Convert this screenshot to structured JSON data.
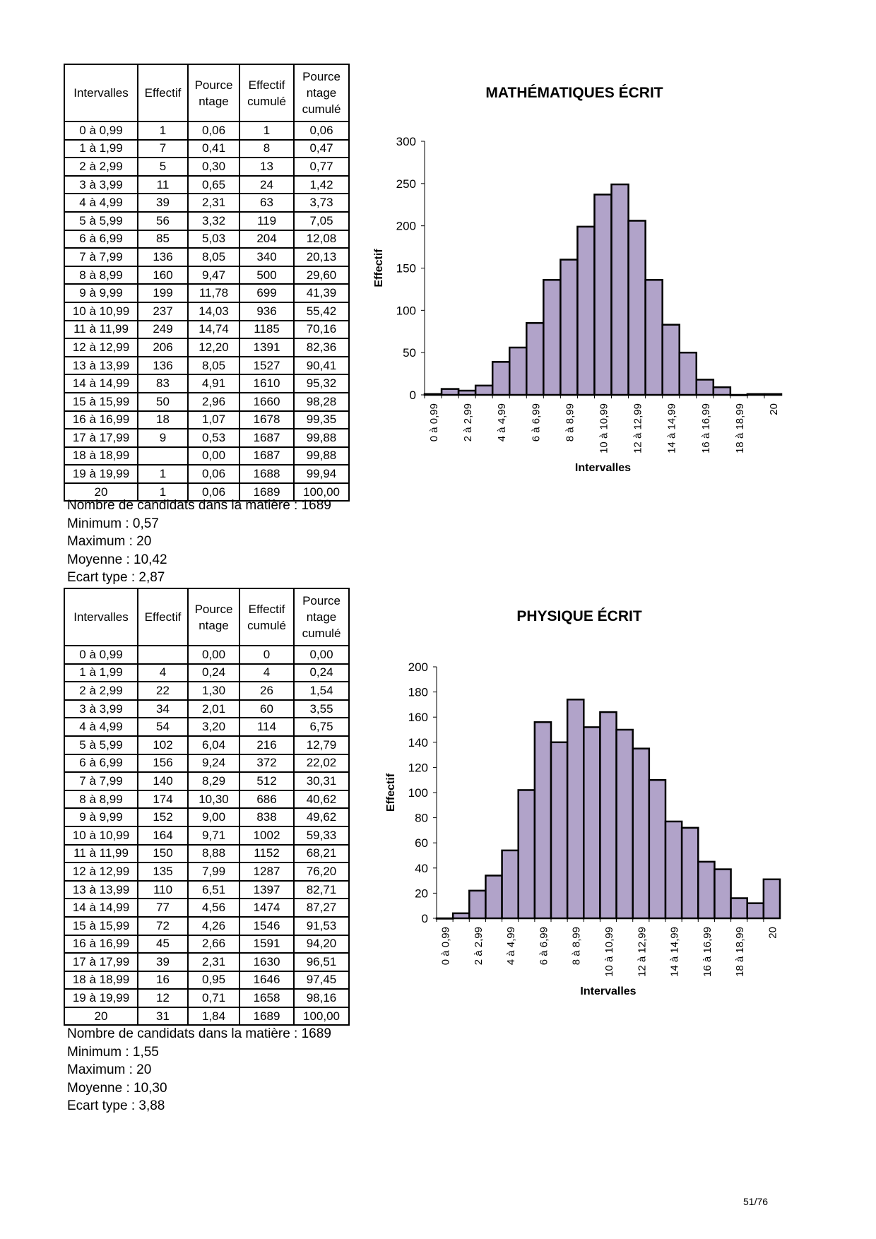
{
  "headers": [
    "Intervalles",
    "Effectif",
    "Pource ntage",
    "Effectif cumulé",
    "Pource ntage cumulé"
  ],
  "sections": [
    {
      "title": "MATHÉMATIQUES ÉCRIT",
      "rows": [
        [
          "0 à 0,99",
          "1",
          "0,06",
          "1",
          "0,06"
        ],
        [
          "1 à 1,99",
          "7",
          "0,41",
          "8",
          "0,47"
        ],
        [
          "2 à 2,99",
          "5",
          "0,30",
          "13",
          "0,77"
        ],
        [
          "3 à 3,99",
          "11",
          "0,65",
          "24",
          "1,42"
        ],
        [
          "4 à 4,99",
          "39",
          "2,31",
          "63",
          "3,73"
        ],
        [
          "5 à 5,99",
          "56",
          "3,32",
          "119",
          "7,05"
        ],
        [
          "6 à 6,99",
          "85",
          "5,03",
          "204",
          "12,08"
        ],
        [
          "7 à 7,99",
          "136",
          "8,05",
          "340",
          "20,13"
        ],
        [
          "8 à 8,99",
          "160",
          "9,47",
          "500",
          "29,60"
        ],
        [
          "9 à 9,99",
          "199",
          "11,78",
          "699",
          "41,39"
        ],
        [
          "10 à 10,99",
          "237",
          "14,03",
          "936",
          "55,42"
        ],
        [
          "11 à 11,99",
          "249",
          "14,74",
          "1185",
          "70,16"
        ],
        [
          "12 à 12,99",
          "206",
          "12,20",
          "1391",
          "82,36"
        ],
        [
          "13 à 13,99",
          "136",
          "8,05",
          "1527",
          "90,41"
        ],
        [
          "14 à 14,99",
          "83",
          "4,91",
          "1610",
          "95,32"
        ],
        [
          "15 à 15,99",
          "50",
          "2,96",
          "1660",
          "98,28"
        ],
        [
          "16 à 16,99",
          "18",
          "1,07",
          "1678",
          "99,35"
        ],
        [
          "17 à 17,99",
          "9",
          "0,53",
          "1687",
          "99,88"
        ],
        [
          "18 à 18,99",
          "",
          "0,00",
          "1687",
          "99,88"
        ],
        [
          "19 à 19,99",
          "1",
          "0,06",
          "1688",
          "99,94"
        ],
        [
          "20",
          "1",
          "0,06",
          "1689",
          "100,00"
        ]
      ],
      "stats": [
        "Nombre de candidats dans la matière : 1689",
        "Minimum : 0,57",
        "Maximum : 20",
        "Moyenne : 10,42",
        "Ecart type : 2,87"
      ]
    },
    {
      "title": "PHYSIQUE ÉCRIT",
      "rows": [
        [
          "0 à 0,99",
          "",
          "0,00",
          "0",
          "0,00"
        ],
        [
          "1 à 1,99",
          "4",
          "0,24",
          "4",
          "0,24"
        ],
        [
          "2 à 2,99",
          "22",
          "1,30",
          "26",
          "1,54"
        ],
        [
          "3 à 3,99",
          "34",
          "2,01",
          "60",
          "3,55"
        ],
        [
          "4 à 4,99",
          "54",
          "3,20",
          "114",
          "6,75"
        ],
        [
          "5 à 5,99",
          "102",
          "6,04",
          "216",
          "12,79"
        ],
        [
          "6 à 6,99",
          "156",
          "9,24",
          "372",
          "22,02"
        ],
        [
          "7 à 7,99",
          "140",
          "8,29",
          "512",
          "30,31"
        ],
        [
          "8 à 8,99",
          "174",
          "10,30",
          "686",
          "40,62"
        ],
        [
          "9 à 9,99",
          "152",
          "9,00",
          "838",
          "49,62"
        ],
        [
          "10 à 10,99",
          "164",
          "9,71",
          "1002",
          "59,33"
        ],
        [
          "11 à 11,99",
          "150",
          "8,88",
          "1152",
          "68,21"
        ],
        [
          "12 à 12,99",
          "135",
          "7,99",
          "1287",
          "76,20"
        ],
        [
          "13 à 13,99",
          "110",
          "6,51",
          "1397",
          "82,71"
        ],
        [
          "14 à 14,99",
          "77",
          "4,56",
          "1474",
          "87,27"
        ],
        [
          "15 à 15,99",
          "72",
          "4,26",
          "1546",
          "91,53"
        ],
        [
          "16 à 16,99",
          "45",
          "2,66",
          "1591",
          "94,20"
        ],
        [
          "17 à 17,99",
          "39",
          "2,31",
          "1630",
          "96,51"
        ],
        [
          "18 à 18,99",
          "16",
          "0,95",
          "1646",
          "97,45"
        ],
        [
          "19 à 19,99",
          "12",
          "0,71",
          "1658",
          "98,16"
        ],
        [
          "20",
          "31",
          "1,84",
          "1689",
          "100,00"
        ]
      ],
      "stats": [
        "Nombre de candidats dans la matière : 1689",
        "Minimum : 1,55",
        "Maximum : 20",
        "Moyenne : 10,30",
        "Ecart type : 3,88"
      ]
    }
  ],
  "chart_data": [
    {
      "type": "bar",
      "title": "MATHÉMATIQUES ÉCRIT",
      "xlabel": "Intervalles",
      "ylabel": "Effectif",
      "ylim": [
        0,
        300
      ],
      "yticks": [
        0,
        50,
        100,
        150,
        200,
        250,
        300
      ],
      "categories": [
        "0 à 0,99",
        "1 à 1,99",
        "2 à 2,99",
        "3 à 3,99",
        "4 à 4,99",
        "5 à 5,99",
        "6 à 6,99",
        "7 à 7,99",
        "8 à 8,99",
        "9 à 9,99",
        "10 à 10,99",
        "11 à 11,99",
        "12 à 12,99",
        "13 à 13,99",
        "14 à 14,99",
        "15 à 15,99",
        "16 à 16,99",
        "17 à 17,99",
        "18 à 18,99",
        "19 à 19,99",
        "20"
      ],
      "values": [
        1,
        7,
        5,
        11,
        39,
        56,
        85,
        136,
        160,
        199,
        237,
        249,
        206,
        136,
        83,
        50,
        18,
        9,
        0,
        1,
        1
      ],
      "bar_color": "#b1a3c9"
    },
    {
      "type": "bar",
      "title": "PHYSIQUE ÉCRIT",
      "xlabel": "Intervalles",
      "ylabel": "Effectif",
      "ylim": [
        0,
        200
      ],
      "yticks": [
        0,
        20,
        40,
        60,
        80,
        100,
        120,
        140,
        160,
        180,
        200
      ],
      "categories": [
        "0 à 0,99",
        "1 à 1,99",
        "2 à 2,99",
        "3 à 3,99",
        "4 à 4,99",
        "5 à 5,99",
        "6 à 6,99",
        "7 à 7,99",
        "8 à 8,99",
        "9 à 9,99",
        "10 à 10,99",
        "11 à 11,99",
        "12 à 12,99",
        "13 à 13,99",
        "14 à 14,99",
        "15 à 15,99",
        "16 à 16,99",
        "17 à 17,99",
        "18 à 18,99",
        "19 à 19,99",
        "20"
      ],
      "values": [
        0,
        4,
        22,
        34,
        54,
        102,
        156,
        140,
        174,
        152,
        164,
        150,
        135,
        110,
        77,
        72,
        45,
        39,
        16,
        12,
        31
      ],
      "bar_color": "#b1a3c9"
    }
  ],
  "page_number": "51/76"
}
